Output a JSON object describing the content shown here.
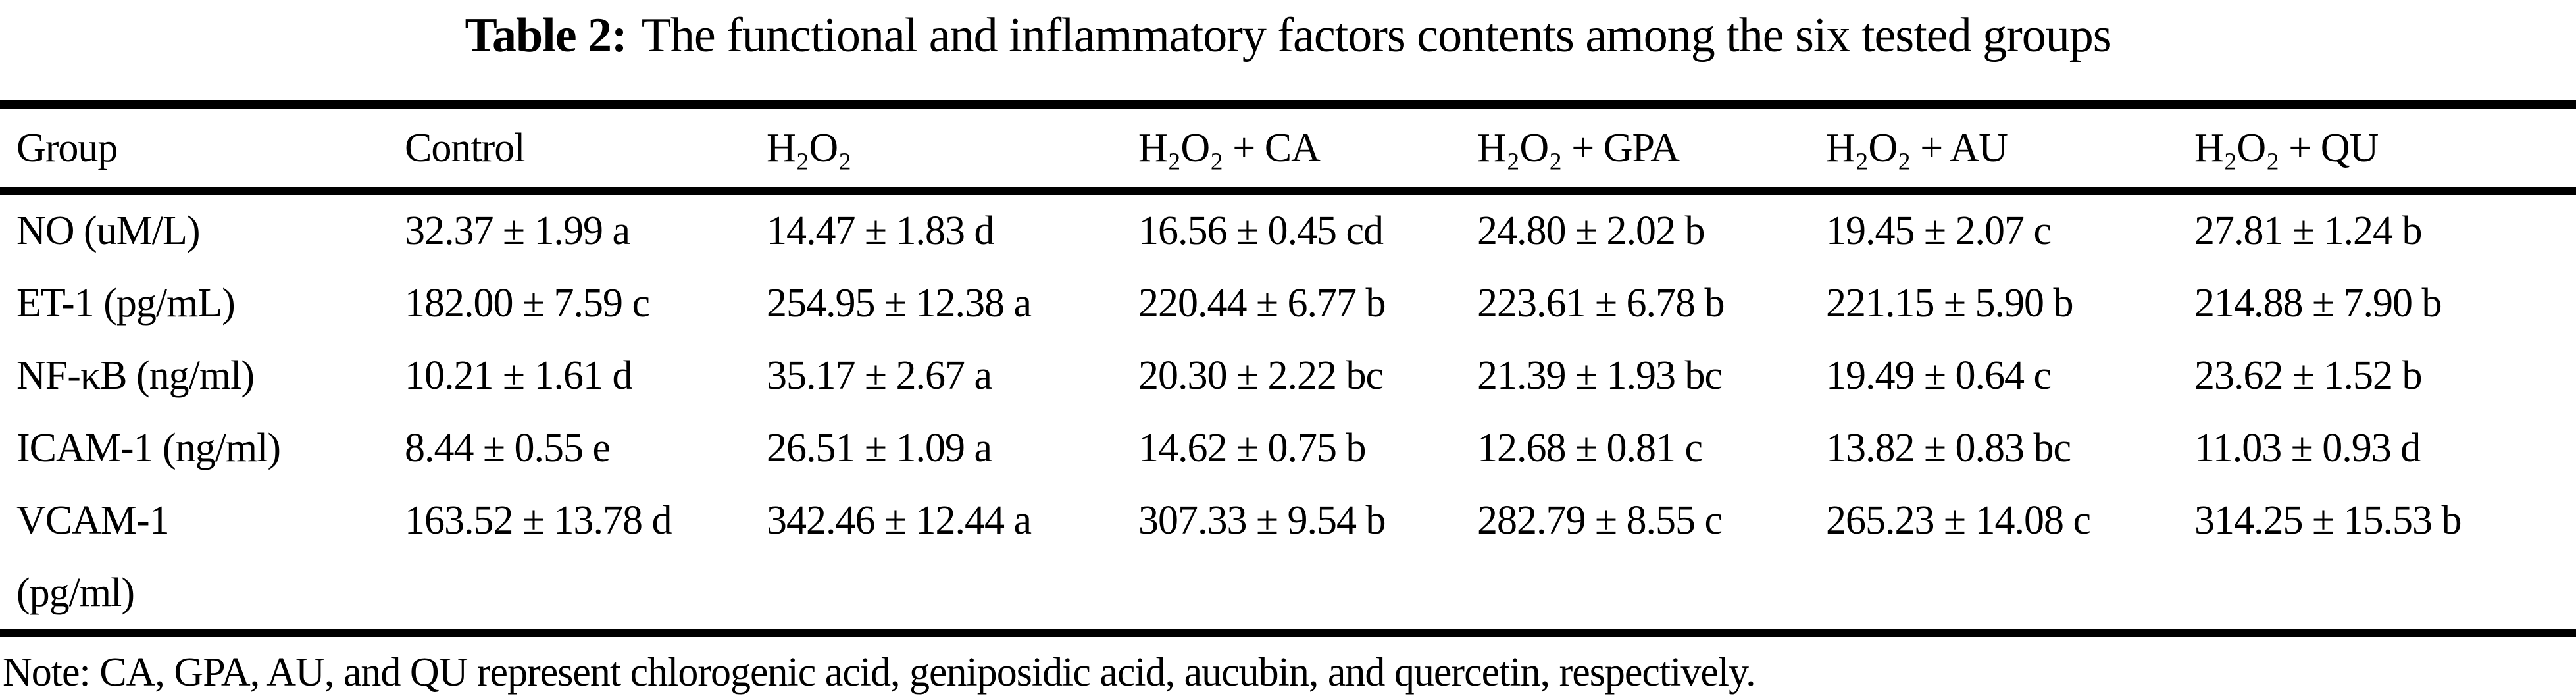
{
  "title": {
    "prefix": "Table 2:",
    "text": "The functional and inflammatory factors contents among the six tested groups"
  },
  "table": {
    "columns": [
      "Group",
      "Control",
      "H₂O₂",
      "H₂O₂ + CA",
      "H₂O₂ + GPA",
      "H₂O₂ + AU",
      "H₂O₂ + QU"
    ],
    "rows": [
      {
        "label": "NO (uM/L)",
        "values": [
          "32.37 ± 1.99 a",
          "14.47 ± 1.83 d",
          "16.56 ± 0.45 cd",
          "24.80 ± 2.02 b",
          "19.45 ± 2.07 c",
          "27.81 ± 1.24 b"
        ]
      },
      {
        "label": "ET-1 (pg/mL)",
        "values": [
          "182.00 ± 7.59 c",
          "254.95 ± 12.38 a",
          "220.44 ± 6.77 b",
          "223.61 ± 6.78 b",
          "221.15 ± 5.90 b",
          "214.88 ± 7.90 b"
        ]
      },
      {
        "label": "NF-κB (ng/ml)",
        "values": [
          "10.21 ± 1.61 d",
          "35.17 ± 2.67 a",
          "20.30 ± 2.22 bc",
          "21.39 ± 1.93 bc",
          "19.49 ± 0.64 c",
          "23.62 ± 1.52 b"
        ]
      },
      {
        "label": "ICAM-1 (ng/ml)",
        "values": [
          "8.44 ± 0.55 e",
          "26.51 ± 1.09 a",
          "14.62 ± 0.75 b",
          "12.68 ± 0.81 c",
          "13.82 ± 0.83 bc",
          "11.03 ± 0.93 d"
        ]
      },
      {
        "label": "VCAM-1\n(pg/ml)",
        "values": [
          "163.52 ± 13.78 d",
          "342.46 ± 12.44 a",
          "307.33 ± 9.54 b",
          "282.79 ± 8.55 c",
          "265.23 ± 14.08 c",
          "314.25 ± 15.53 b"
        ]
      }
    ]
  },
  "note": "Note: CA, GPA, AU, and QU represent chlorogenic acid, geniposidic acid, aucubin, and quercetin, respectively."
}
